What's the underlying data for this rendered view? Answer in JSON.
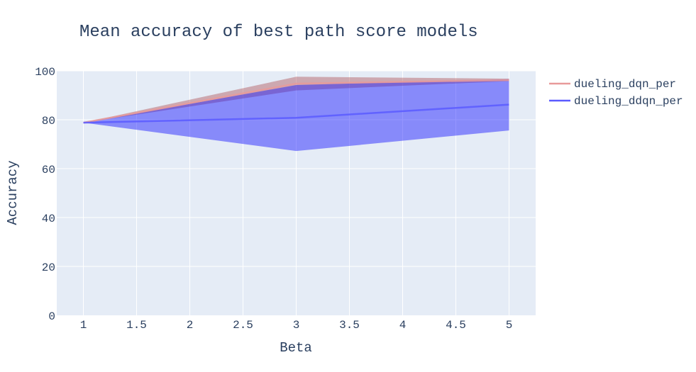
{
  "chart_data": {
    "type": "line",
    "title": "Mean accuracy of best path score models",
    "xlabel": "Beta",
    "ylabel": "Accuracy",
    "x": [
      1,
      3,
      5
    ],
    "xlim": [
      0.75,
      5.25
    ],
    "ylim": [
      0,
      100
    ],
    "xticks": [
      "1",
      "1.5",
      "2",
      "2.5",
      "3",
      "3.5",
      "4",
      "4.5",
      "5"
    ],
    "yticks": [
      "0",
      "20",
      "40",
      "60",
      "80",
      "100"
    ],
    "grid": true,
    "legend_position": "top-right",
    "plot_background": "#e5ecf6",
    "series": [
      {
        "name": "dueling_dqn_per",
        "values": [
          78.8,
          94.8,
          96.2
        ],
        "lower": [
          78.8,
          92.0,
          95.8
        ],
        "upper": [
          78.8,
          97.6,
          96.8
        ],
        "line_color": "#e89a9a",
        "band_color": "#b0575a"
      },
      {
        "name": "dueling_ddqn_per",
        "values": [
          78.8,
          80.8,
          86.2
        ],
        "lower": [
          78.8,
          67.2,
          75.6
        ],
        "upper": [
          78.8,
          94.2,
          96.6
        ],
        "line_color": "#5b5bff",
        "band_color": "#1414ff"
      }
    ]
  }
}
